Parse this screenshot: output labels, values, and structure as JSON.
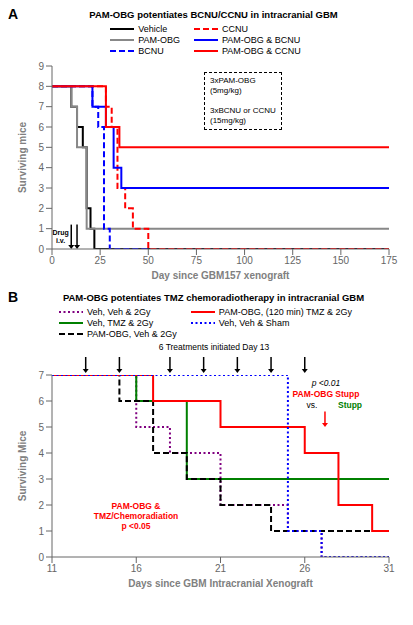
{
  "chart_data": [
    {
      "type": "line",
      "panel": "A",
      "title": "PAM-OBG potentiates BCNU/CCNU in intracranial GBM",
      "x_label": "Day since GBM157 xenograft",
      "y_label": "Surviving mice",
      "xlim": [
        0,
        175
      ],
      "ylim": [
        0,
        9
      ],
      "xticks": [
        0,
        25,
        50,
        75,
        100,
        125,
        150,
        175
      ],
      "yticks": [
        0,
        1,
        2,
        3,
        4,
        5,
        6,
        7,
        8,
        9
      ],
      "grid": false,
      "legend": "top",
      "series": [
        {
          "name": "Vehicle",
          "color": "black",
          "line_style": "solid",
          "x": [
            0,
            10,
            10,
            13,
            13,
            16,
            16,
            18,
            18,
            20,
            20,
            22,
            22,
            25,
            25,
            175
          ],
          "values": [
            8,
            8,
            7,
            7,
            6,
            6,
            5,
            5,
            2,
            2,
            1,
            1,
            0,
            0,
            0,
            0
          ]
        },
        {
          "name": "PAM-OBG",
          "color": "#888888",
          "line_style": "solid",
          "x": [
            0,
            10,
            10,
            13,
            13,
            18,
            18,
            22,
            22,
            175
          ],
          "values": [
            8,
            8,
            7,
            7,
            5,
            5,
            1,
            1,
            1,
            1
          ]
        },
        {
          "name": "BCNU",
          "color": "blue",
          "line_style": "dashed",
          "x": [
            0,
            21,
            21,
            24,
            24,
            27,
            27,
            30,
            30,
            175
          ],
          "values": [
            8,
            8,
            7,
            7,
            6,
            6,
            1,
            1,
            0,
            0
          ]
        },
        {
          "name": "CCNU",
          "color": "red",
          "line_style": "dashed",
          "x": [
            0,
            28,
            28,
            31,
            31,
            34,
            34,
            38,
            38,
            42,
            42,
            50,
            50,
            175
          ],
          "values": [
            8,
            8,
            7,
            7,
            6,
            6,
            3,
            3,
            2,
            2,
            1,
            1,
            0,
            0
          ]
        },
        {
          "name": "PAM-OBG & BCNU",
          "color": "blue",
          "line_style": "solid",
          "x": [
            0,
            21,
            21,
            28,
            28,
            32,
            32,
            36,
            36,
            40,
            40,
            175
          ],
          "values": [
            8,
            8,
            7,
            7,
            6,
            6,
            4,
            4,
            3,
            3,
            3,
            3
          ]
        },
        {
          "name": "PAM-OBG & CCNU",
          "color": "red",
          "line_style": "solid",
          "x": [
            0,
            28,
            28,
            35,
            35,
            92,
            92,
            175
          ],
          "values": [
            8,
            8,
            6,
            6,
            5,
            5,
            5,
            5
          ]
        }
      ],
      "annotations": [
        {
          "text": "Drug\ni.v.",
          "x": 6,
          "y": 0.3
        },
        {
          "text": "3xPAM-OBG\n(5mg/kg)\n\n3xBCNU or CCNU\n(15mg/kg)"
        }
      ],
      "arrows": [
        {
          "x": 10,
          "y_from": 1.2,
          "y_to": 0
        },
        {
          "x": 13,
          "y_from": 1.2,
          "y_to": 0
        }
      ]
    },
    {
      "type": "line",
      "panel": "B",
      "title": "PAM-OBG potentiates TMZ chemoradiotherapy in intracranial GBM",
      "x_label": "Days since GBM Intracranial Xenograft",
      "y_label": "Surviving Mice",
      "xlim": [
        11,
        31
      ],
      "ylim": [
        0,
        7
      ],
      "xticks": [
        11,
        16,
        21,
        26,
        31
      ],
      "yticks": [
        0,
        1,
        2,
        3,
        4,
        5,
        6,
        7
      ],
      "grid": false,
      "legend": "top",
      "series": [
        {
          "name": "Veh, Veh & 2Gy",
          "color": "purple",
          "line_style": "dotted",
          "x": [
            11,
            16,
            16,
            18,
            18,
            21,
            21,
            25,
            25,
            27,
            27,
            31
          ],
          "values": [
            7,
            7,
            5,
            5,
            4,
            4,
            2,
            2,
            1,
            1,
            0,
            0
          ]
        },
        {
          "name": "Veh, TMZ & 2Gy",
          "color": "green",
          "line_style": "solid",
          "x": [
            11,
            16,
            16,
            19,
            19,
            21,
            21,
            31
          ],
          "values": [
            7,
            7,
            6,
            6,
            3,
            3,
            3,
            3
          ]
        },
        {
          "name": "PAM-OBG, Veh & 2Gy",
          "color": "black",
          "line_style": "dashed",
          "x": [
            11,
            15,
            15,
            17,
            17,
            19,
            19,
            21,
            21,
            24,
            24,
            31
          ],
          "values": [
            7,
            7,
            6,
            6,
            4,
            4,
            3,
            3,
            2,
            2,
            1,
            1
          ]
        },
        {
          "name": "PAM-OBG, (120 min) TMZ & 2Gy",
          "color": "red",
          "line_style": "solid",
          "x": [
            11,
            17,
            17,
            21,
            21,
            26,
            26,
            28,
            28,
            30,
            30,
            31
          ],
          "values": [
            7,
            7,
            6,
            6,
            5,
            5,
            4,
            4,
            2,
            2,
            1,
            1
          ]
        },
        {
          "name": "Veh, Veh & Sham",
          "color": "blue",
          "line_style": "dotted",
          "x": [
            11,
            25,
            25,
            27,
            27,
            31
          ],
          "values": [
            7,
            7,
            1,
            1,
            0,
            0
          ]
        }
      ],
      "annotations": [
        {
          "text": "6 Treatments initiated Day 13"
        },
        {
          "text": "PAM-OBG &\nTMZ/Chemoradiation\np <0.05",
          "color": "red"
        },
        {
          "text": "p <0.01"
        },
        {
          "text": "PAM-OBG Stupp",
          "color": "red"
        },
        {
          "text": "vs."
        },
        {
          "text": "Stupp",
          "color": "green"
        }
      ],
      "arrow_days": [
        13,
        15,
        18,
        20,
        22,
        24,
        26
      ],
      "arrows": [
        {
          "x": 27.2,
          "y_from": 5.6,
          "y_to": 5.0,
          "color": "red"
        }
      ]
    }
  ]
}
